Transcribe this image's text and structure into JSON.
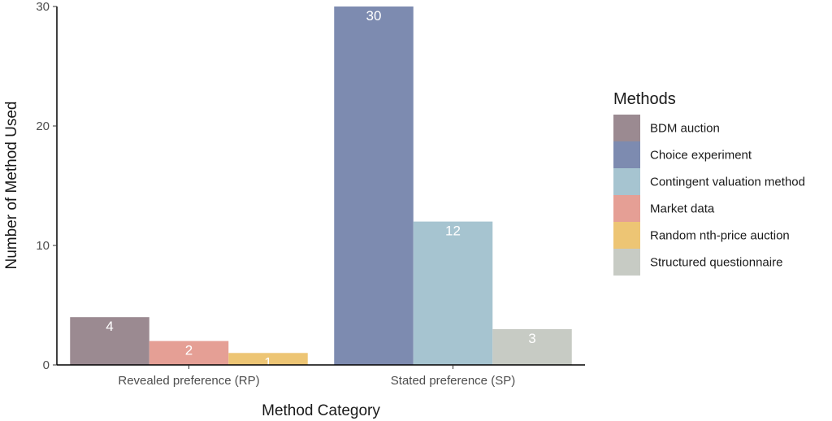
{
  "chart_data": {
    "type": "bar",
    "title": "",
    "xlabel": "Method Category",
    "ylabel": "Number of Method Used",
    "ylim": [
      0,
      30
    ],
    "yticks": [
      0,
      10,
      20,
      30
    ],
    "grid": false,
    "legend_position": "right",
    "legend_title": "Methods",
    "categories": [
      "Revealed preference (RP)",
      "Stated preference (SP)"
    ],
    "series": [
      {
        "name": "BDM auction",
        "color": "#9b8a91"
      },
      {
        "name": "Choice experiment",
        "color": "#7d8bb0"
      },
      {
        "name": "Contingent valuation method",
        "color": "#a6c4d0"
      },
      {
        "name": "Market data",
        "color": "#e59f95"
      },
      {
        "name": "Random nth-price auction",
        "color": "#edc574"
      },
      {
        "name": "Structured questionnaire",
        "color": "#c7cbc4"
      }
    ],
    "bars": [
      {
        "category": "Revealed preference (RP)",
        "method": "BDM auction",
        "value": 4,
        "label": "4"
      },
      {
        "category": "Revealed preference (RP)",
        "method": "Market data",
        "value": 2,
        "label": "2"
      },
      {
        "category": "Revealed preference (RP)",
        "method": "Random nth-price auction",
        "value": 1,
        "label": "1"
      },
      {
        "category": "Stated preference (SP)",
        "method": "Choice experiment",
        "value": 30,
        "label": "30"
      },
      {
        "category": "Stated preference (SP)",
        "method": "Contingent valuation method",
        "value": 12,
        "label": "12"
      },
      {
        "category": "Stated preference (SP)",
        "method": "Structured questionnaire",
        "value": 3,
        "label": "3"
      }
    ]
  }
}
